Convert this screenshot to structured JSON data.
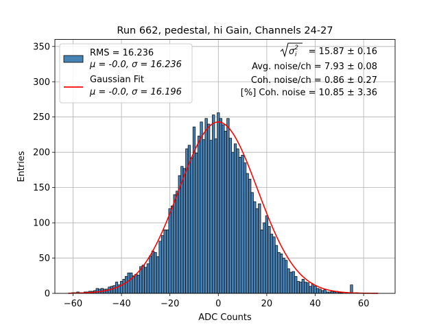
{
  "chart_data": {
    "type": "bar",
    "title": "Run 662, pedestal, hi Gain, Channels 24-27",
    "xlabel": "ADC Counts",
    "ylabel": "Entries",
    "xlim": [
      -67.5,
      73.0
    ],
    "ylim": [
      0,
      360
    ],
    "xticks": [
      -60,
      -40,
      -20,
      0,
      20,
      40,
      60
    ],
    "yticks": [
      0,
      50,
      100,
      150,
      200,
      250,
      300,
      350
    ],
    "grid": true,
    "bin_width": 1,
    "histogram": {
      "name": "RMS = 16.236",
      "x": [
        -60,
        -59,
        -58,
        -57,
        -56,
        -55,
        -54,
        -53,
        -52,
        -51,
        -50,
        -49,
        -48,
        -47,
        -46,
        -45,
        -44,
        -43,
        -42,
        -41,
        -40,
        -39,
        -38,
        -37,
        -36,
        -35,
        -34,
        -33,
        -32,
        -31,
        -30,
        -29,
        -28,
        -27,
        -26,
        -25,
        -24,
        -23,
        -22,
        -21,
        -20,
        -19,
        -18,
        -17,
        -16,
        -15,
        -14,
        -13,
        -12,
        -11,
        -10,
        -9,
        -8,
        -7,
        -6,
        -5,
        -4,
        -3,
        -2,
        -1,
        0,
        1,
        2,
        3,
        4,
        5,
        6,
        7,
        8,
        9,
        10,
        11,
        12,
        13,
        14,
        15,
        16,
        17,
        18,
        19,
        20,
        21,
        22,
        23,
        24,
        25,
        26,
        27,
        28,
        29,
        30,
        31,
        32,
        33,
        34,
        35,
        36,
        37,
        38,
        39,
        40,
        41,
        42,
        43,
        44,
        45,
        46,
        47,
        48,
        49,
        50,
        51,
        52,
        53,
        54,
        55,
        56,
        57,
        58,
        59,
        60,
        61,
        62,
        63,
        64,
        65,
        66
      ],
      "values": [
        1,
        1,
        2,
        1,
        1,
        2,
        2,
        3,
        3,
        4,
        7,
        6,
        7,
        6,
        6,
        9,
        10,
        11,
        16,
        12,
        17,
        20,
        24,
        29,
        29,
        25,
        27,
        26,
        38,
        40,
        37,
        42,
        53,
        60,
        58,
        52,
        74,
        82,
        90,
        90,
        120,
        124,
        140,
        145,
        167,
        180,
        177,
        205,
        210,
        192,
        236,
        199,
        223,
        243,
        218,
        248,
        240,
        217,
        253,
        219,
        256,
        248,
        239,
        230,
        248,
        220,
        200,
        212,
        205,
        193,
        196,
        185,
        170,
        162,
        143,
        130,
        120,
        127,
        90,
        100,
        110,
        95,
        84,
        80,
        68,
        58,
        56,
        50,
        47,
        35,
        30,
        31,
        24,
        17,
        16,
        20,
        16,
        15,
        10,
        13,
        10,
        7,
        6,
        4,
        5,
        2,
        2,
        3,
        2,
        3,
        1,
        1,
        0,
        1,
        1,
        12,
        0,
        1,
        0,
        0,
        0,
        0,
        0,
        0,
        0,
        0,
        0
      ]
    },
    "gaussian_fit": {
      "name": "Gaussian Fit",
      "mean": 0.0,
      "sigma": 16.196,
      "amplitude": 243,
      "x_range": [
        -62,
        66
      ],
      "color": "#ff0000"
    },
    "bar_color": "#4682b4",
    "legend_location": "upper left"
  },
  "legend": {
    "hist_line1": "RMS = 16.236",
    "hist_line2": "μ = -0.0, σ = 16.236",
    "fit_line1": "Gaussian Fit",
    "fit_line2": "μ = -0.0, σ = 16.196"
  },
  "annotations": {
    "line1_value": "= 15.87 ± 0.16",
    "line1_symbol": "σ",
    "line1_symbol_sub": "i",
    "line1_symbol_sup": "2",
    "line2": "Avg. noise/ch = 7.93 ± 0.08",
    "line3": "Coh. noise/ch = 0.86 ± 0.27",
    "line4": "[%] Coh. noise = 10.85 ± 3.36"
  }
}
